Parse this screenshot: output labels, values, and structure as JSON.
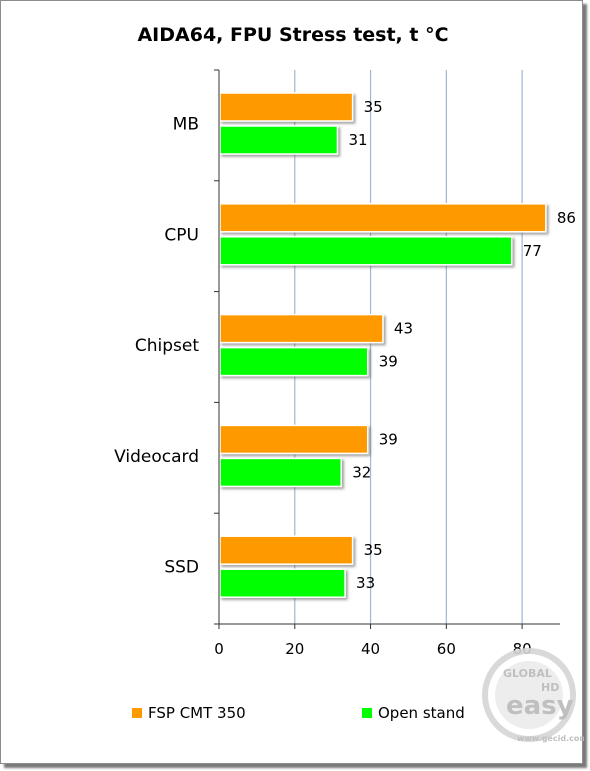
{
  "chart_data": {
    "type": "bar",
    "orientation": "horizontal",
    "title": "AIDA64, FPU Stress test, t °C",
    "categories": [
      "MB",
      "CPU",
      "Chipset",
      "Videocard",
      "SSD"
    ],
    "series": [
      {
        "name": "FSP CMT 350",
        "values": [
          35,
          86,
          43,
          39,
          35
        ],
        "color": "#ff9900"
      },
      {
        "name": "Open stand",
        "values": [
          31,
          77,
          39,
          32,
          33
        ],
        "color": "#00ff00"
      }
    ],
    "xlim": [
      0,
      90
    ],
    "xticks": [
      0,
      20,
      40,
      60,
      80
    ],
    "grid": "vertical",
    "legend_position": "bottom",
    "xlabel": "",
    "ylabel": ""
  },
  "watermark": {
    "text_1": "GLOBAL",
    "text_2": "HD",
    "text_3": "easy",
    "text_4": "www.gecid.com"
  }
}
